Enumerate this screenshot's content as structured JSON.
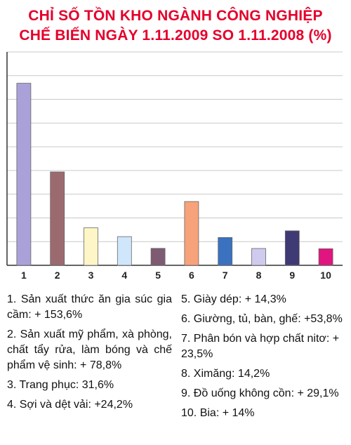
{
  "chart_data": {
    "type": "bar",
    "title": "CHỈ SỐ TỒN KHO NGÀNH CÔNG NGHIỆP",
    "subtitle": "CHẾ BIẾN NGÀY 1.11.2009 SO 1.11.2008 (%)",
    "xlabel": "",
    "ylabel": "",
    "grid": true,
    "ylim": [
      0,
      180
    ],
    "categories": [
      "1",
      "2",
      "3",
      "4",
      "5",
      "6",
      "7",
      "8",
      "9",
      "10"
    ],
    "values": [
      153.6,
      78.8,
      31.6,
      24.2,
      14.3,
      53.8,
      23.5,
      14.2,
      29.1,
      14
    ],
    "colors": [
      "#a9a1d8",
      "#9b6a6f",
      "#fff6c8",
      "#cfe6fb",
      "#7f5a73",
      "#f7a27a",
      "#3a72c0",
      "#cfcbee",
      "#3f3a74",
      "#e0157f"
    ],
    "legend": [
      "1. Sản xuất thức ăn gia súc gia cầm: + 153,6%",
      "2. Sản xuất mỹ phẩm, xà phòng, chất tẩy rửa, làm bóng và chế phẩm vệ sinh: + 78,8%",
      "3. Trang phục: 31,6%",
      "4. Sợi và dệt vải: +24,2%",
      "5. Giày dép: + 14,3%",
      "6. Giường, tủ, bàn, ghế: +53,8%",
      "7. Phân bón và hợp chất nitơ: + 23,5%",
      "8. Ximăng: 14,2%",
      "9. Đồ uống không cồn: + 29,1%",
      "10. Bia: + 14%"
    ]
  }
}
